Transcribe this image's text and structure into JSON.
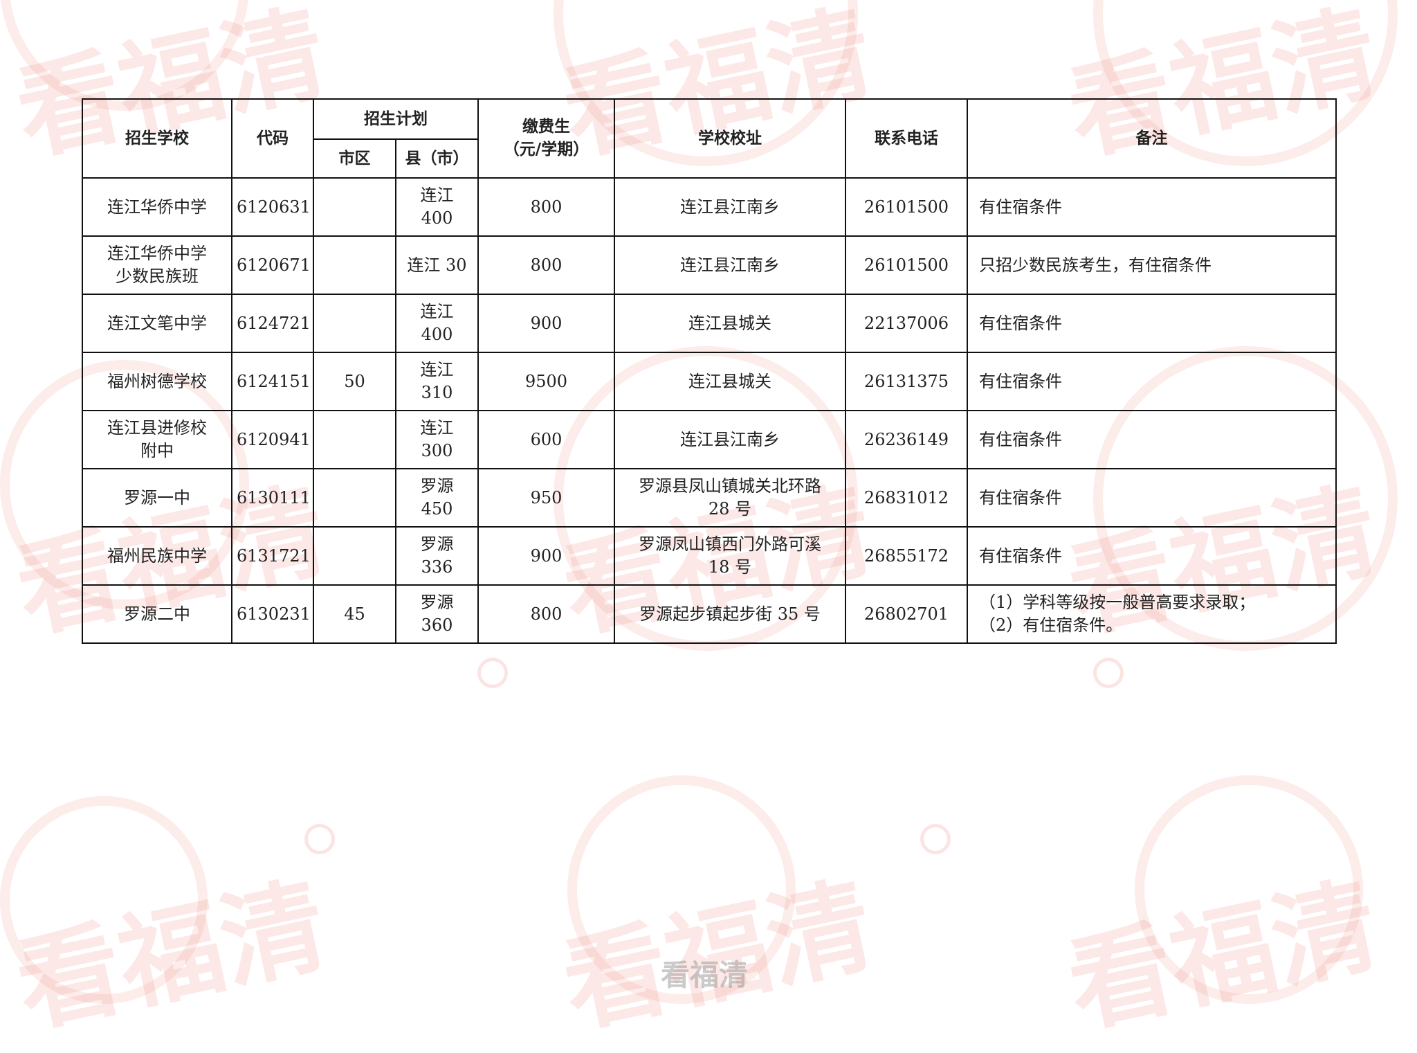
{
  "watermark": {
    "text": "看福清",
    "color": "#f0968c"
  },
  "headers": {
    "school": "招生学校",
    "code": "代码",
    "plan": "招生计划",
    "plan_city": "市区",
    "plan_county": "县（市）",
    "fee": "缴费生\n（元/学期）",
    "address": "学校校址",
    "phone": "联系电话",
    "note": "备注"
  },
  "rows": [
    {
      "school": "连江华侨中学",
      "code": "6120631",
      "city": "",
      "county": "连江\n400",
      "fee": "800",
      "address": "连江县江南乡",
      "phone": "26101500",
      "note": "有住宿条件"
    },
    {
      "school": "连江华侨中学\n少数民族班",
      "code": "6120671",
      "city": "",
      "county": "连江 30",
      "fee": "800",
      "address": "连江县江南乡",
      "phone": "26101500",
      "note": "只招少数民族考生，有住宿条件"
    },
    {
      "school": "连江文笔中学",
      "code": "6124721",
      "city": "",
      "county": "连江\n400",
      "fee": "900",
      "address": "连江县城关",
      "phone": "22137006",
      "note": "有住宿条件"
    },
    {
      "school": "福州树德学校",
      "code": "6124151",
      "city": "50",
      "county": "连江\n310",
      "fee": "9500",
      "address": "连江县城关",
      "phone": "26131375",
      "note": "有住宿条件"
    },
    {
      "school": "连江县进修校\n附中",
      "code": "6120941",
      "city": "",
      "county": "连江\n300",
      "fee": "600",
      "address": "连江县江南乡",
      "phone": "26236149",
      "note": "有住宿条件"
    },
    {
      "school": "罗源一中",
      "code": "6130111",
      "city": "",
      "county": "罗源\n450",
      "fee": "950",
      "address": "罗源县凤山镇城关北环路\n28 号",
      "phone": "26831012",
      "note": "有住宿条件"
    },
    {
      "school": "福州民族中学",
      "code": "6131721",
      "city": "",
      "county": "罗源\n336",
      "fee": "900",
      "address": "罗源凤山镇西门外路可溪\n18 号",
      "phone": "26855172",
      "note": "有住宿条件"
    },
    {
      "school": "罗源二中",
      "code": "6130231",
      "city": "45",
      "county": "罗源\n360",
      "fee": "800",
      "address": "罗源起步镇起步街 35 号",
      "phone": "26802701",
      "note": "（1）学科等级按一般普高要求录取；\n（2）有住宿条件。"
    }
  ],
  "footer_logo": "看福清"
}
